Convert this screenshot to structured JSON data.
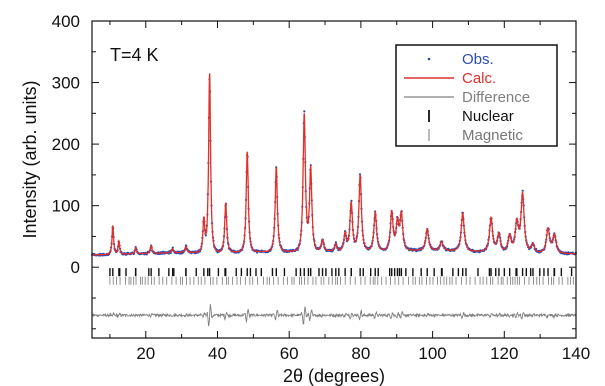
{
  "chart_data": {
    "type": "line",
    "annotation": "T=4 K",
    "xlabel": "2θ (degrees)",
    "ylabel": "Intensity (arb. units)",
    "xlim": [
      5,
      140
    ],
    "ylim": [
      -115,
      400
    ],
    "x_ticks": [
      20,
      40,
      60,
      80,
      100,
      120,
      140
    ],
    "y_ticks": [
      0,
      100,
      200,
      300,
      400
    ],
    "grid": false,
    "legend_placement": "top-right",
    "colors": {
      "obs": "#2b4bb0",
      "calc": "#e0302a",
      "difference": "#808080",
      "nuclear": "#111111",
      "magnetic": "#777777"
    },
    "legend": [
      {
        "key": "obs",
        "label": "Obs."
      },
      {
        "key": "calc",
        "label": "Calc."
      },
      {
        "key": "difference",
        "label": "Difference"
      },
      {
        "key": "nuclear",
        "label": "Nuclear"
      },
      {
        "key": "magnetic",
        "label": "Magnetic"
      }
    ],
    "background": [
      [
        5,
        20
      ],
      [
        30,
        24
      ],
      [
        60,
        26
      ],
      [
        100,
        28
      ],
      [
        140,
        22
      ]
    ],
    "peaks": [
      {
        "x": 10.8,
        "y": 68
      },
      {
        "x": 12.5,
        "y": 42
      },
      {
        "x": 17.2,
        "y": 32
      },
      {
        "x": 21.5,
        "y": 35
      },
      {
        "x": 27.5,
        "y": 30
      },
      {
        "x": 31.2,
        "y": 34
      },
      {
        "x": 36.2,
        "y": 78
      },
      {
        "x": 37.8,
        "y": 315
      },
      {
        "x": 42.3,
        "y": 105
      },
      {
        "x": 48.3,
        "y": 188
      },
      {
        "x": 56.4,
        "y": 162
      },
      {
        "x": 64.2,
        "y": 248
      },
      {
        "x": 66.0,
        "y": 160
      },
      {
        "x": 69.3,
        "y": 45
      },
      {
        "x": 73.0,
        "y": 38
      },
      {
        "x": 75.6,
        "y": 55
      },
      {
        "x": 77.3,
        "y": 105
      },
      {
        "x": 79.8,
        "y": 150
      },
      {
        "x": 84.0,
        "y": 90
      },
      {
        "x": 88.6,
        "y": 90
      },
      {
        "x": 90.2,
        "y": 72
      },
      {
        "x": 91.3,
        "y": 85
      },
      {
        "x": 98.5,
        "y": 62
      },
      {
        "x": 102.5,
        "y": 42
      },
      {
        "x": 108.4,
        "y": 88
      },
      {
        "x": 116.3,
        "y": 80
      },
      {
        "x": 118.5,
        "y": 55
      },
      {
        "x": 121.5,
        "y": 52
      },
      {
        "x": 123.5,
        "y": 72
      },
      {
        "x": 125.1,
        "y": 118
      },
      {
        "x": 128.0,
        "y": 38
      },
      {
        "x": 132.2,
        "y": 62
      },
      {
        "x": 134.0,
        "y": 52
      }
    ],
    "nuclear_ticks_y": -8,
    "magnetic_ticks_y": -22,
    "difference_offset": -78
  }
}
